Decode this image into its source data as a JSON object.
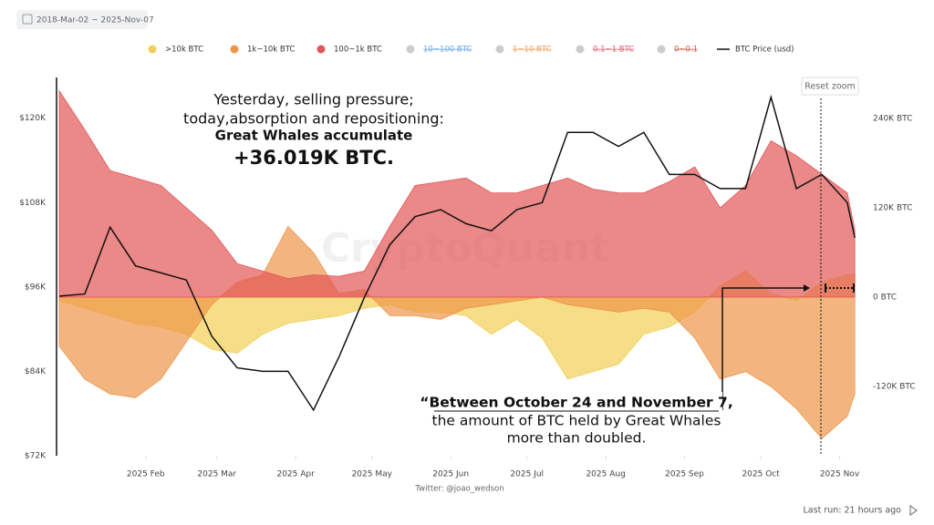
{
  "chart_data": {
    "type": "area",
    "date_range": "2018-Mar-02 ~ 2025-Nov-07",
    "reset_button": "Reset zoom",
    "watermark": "CryptoQuant",
    "credit": "Twitter: @joao_wedson",
    "last_run": "Last run: 21 hours ago",
    "annotations": [
      {
        "lines": [
          "Yesterday, selling pressure;",
          "today,absorption and repositioning:",
          "Great Whales accumulate",
          "+36.019K BTC."
        ]
      },
      {
        "lines": [
          "“Between October 24 and November 7,",
          "the amount of BTC held by Great Whales",
          "more than doubled."
        ]
      }
    ],
    "x": [
      "2024-12-29",
      "2025-01-08",
      "2025-01-18",
      "2025-01-28",
      "2025-02-07",
      "2025-02-17",
      "2025-02-27",
      "2025-03-09",
      "2025-03-19",
      "2025-03-29",
      "2025-04-08",
      "2025-04-18",
      "2025-04-28",
      "2025-05-08",
      "2025-05-18",
      "2025-05-28",
      "2025-06-07",
      "2025-06-17",
      "2025-06-27",
      "2025-07-07",
      "2025-07-17",
      "2025-07-27",
      "2025-08-06",
      "2025-08-16",
      "2025-08-26",
      "2025-09-05",
      "2025-09-15",
      "2025-09-25",
      "2025-10-05",
      "2025-10-15",
      "2025-10-25",
      "2025-11-04",
      "2025-11-07"
    ],
    "xlim": [
      "2024-12-29",
      "2025-11-08"
    ],
    "xticks": [
      {
        "value": "2025-02-01",
        "label": "2025 Feb"
      },
      {
        "value": "2025-03-01",
        "label": "2025 Mar"
      },
      {
        "value": "2025-04-01",
        "label": "2025 Apr"
      },
      {
        "value": "2025-05-01",
        "label": "2025 May"
      },
      {
        "value": "2025-06-01",
        "label": "2025 Jun"
      },
      {
        "value": "2025-07-01",
        "label": "2025 Jul"
      },
      {
        "value": "2025-08-01",
        "label": "2025 Aug"
      },
      {
        "value": "2025-09-01",
        "label": "2025 Sep"
      },
      {
        "value": "2025-10-01",
        "label": "2025 Oct"
      },
      {
        "value": "2025-11-01",
        "label": "2025 Nov"
      }
    ],
    "ylim": [
      72000,
      125800
    ],
    "yticks": [
      {
        "value": 72000,
        "label": "$72K"
      },
      {
        "value": 84000,
        "label": "$84K"
      },
      {
        "value": 96000,
        "label": "$96K"
      },
      {
        "value": 108000,
        "label": "$108K"
      },
      {
        "value": 120000,
        "label": "$120K"
      }
    ],
    "y2lim": [
      -213000,
      295000
    ],
    "y2ticks": [
      {
        "value": -120000,
        "label": "-120K BTC"
      },
      {
        "value": 0,
        "label": "0 BTC"
      },
      {
        "value": 120000,
        "label": "120K BTC"
      },
      {
        "value": 240000,
        "label": "240K BTC"
      }
    ],
    "series": [
      {
        "name": ">10k BTC",
        "type": "area",
        "axis": "y2",
        "color": "#f2cf55",
        "values": [
          -5000,
          -15000,
          -25000,
          -35000,
          -40000,
          -50000,
          -70000,
          -75000,
          -50000,
          -35000,
          -30000,
          -25000,
          -15000,
          -10000,
          -20000,
          -20000,
          -25000,
          -50000,
          -30000,
          -55000,
          -110000,
          -100000,
          -90000,
          -50000,
          -40000,
          -20000,
          15000,
          35000,
          5000,
          -5000,
          20000,
          30000,
          30000
        ]
      },
      {
        "name": "1k~10k BTC",
        "type": "area",
        "axis": "y2",
        "color": "#ee9548",
        "values": [
          -66000,
          -110000,
          -130000,
          -135000,
          -110000,
          -60000,
          -10000,
          20000,
          30000,
          95000,
          60000,
          5000,
          10000,
          -25000,
          -25000,
          -30000,
          -15000,
          -10000,
          -5000,
          0,
          -10000,
          -15000,
          -20000,
          -15000,
          -20000,
          -55000,
          -110000,
          -100000,
          -120000,
          -150000,
          -190000,
          -160000,
          -130000
        ]
      },
      {
        "name": "100~1k BTC",
        "type": "area",
        "axis": "y2",
        "color": "#e25555",
        "values": [
          277000,
          225000,
          170000,
          160000,
          150000,
          120000,
          90000,
          45000,
          35000,
          25000,
          30000,
          28000,
          35000,
          95000,
          150000,
          155000,
          160000,
          140000,
          140000,
          150000,
          160000,
          145000,
          140000,
          140000,
          155000,
          175000,
          120000,
          150000,
          210000,
          190000,
          165000,
          140000,
          90000
        ]
      },
      {
        "name": "BTC Price (usd)",
        "type": "line",
        "axis": "y",
        "color": "#111111",
        "values": [
          94700,
          95000,
          104500,
          99000,
          98000,
          97000,
          89000,
          84500,
          84000,
          84000,
          78500,
          86000,
          94500,
          102000,
          106000,
          107000,
          105000,
          104000,
          107000,
          108000,
          118000,
          118000,
          116000,
          118000,
          112000,
          112000,
          110000,
          110000,
          123000,
          110000,
          112000,
          108000,
          103000
        ]
      }
    ],
    "disabled_series": [
      {
        "name": "10~100 BTC",
        "color": "#6aa9e0"
      },
      {
        "name": "1~10 BTC",
        "color": "#f0a060"
      },
      {
        "name": "0.1~1 BTC",
        "color": "#e06070"
      },
      {
        "name": "0~0.1",
        "color": "#d06050"
      }
    ]
  }
}
